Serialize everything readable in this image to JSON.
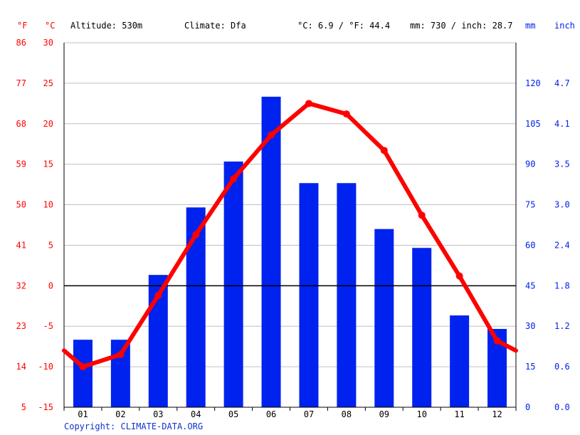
{
  "header": {
    "unit_f": "°F",
    "unit_c": "°C",
    "altitude": "Altitude: 530m",
    "climate": "Climate: Dfa",
    "temp_avg": "°C: 6.9 / °F: 44.4",
    "precip_total": "mm: 730 / inch: 28.7",
    "unit_mm": "mm",
    "unit_inch": "inch"
  },
  "colors": {
    "temperature": "#ff0000",
    "precipitation": "#0022ee",
    "grid": "#c0c0c0"
  },
  "footer": {
    "copyright": "Copyright: CLIMATE-DATA.ORG"
  },
  "chart_data": {
    "type": "bar+line",
    "categories": [
      "01",
      "02",
      "03",
      "04",
      "05",
      "06",
      "07",
      "08",
      "09",
      "10",
      "11",
      "12"
    ],
    "series": [
      {
        "type": "bar",
        "axis": "precipitation",
        "values": [
          25,
          25,
          49,
          74,
          91,
          115,
          83,
          83,
          66,
          59,
          34,
          29
        ]
      },
      {
        "type": "line",
        "axis": "temperature",
        "values": [
          -10.0,
          -8.5,
          -1.2,
          6.3,
          13.2,
          18.6,
          22.5,
          21.2,
          16.7,
          8.7,
          1.2,
          -6.8
        ]
      }
    ],
    "temperature_start": -8.0,
    "temperature_end": -8.0,
    "y_left_celsius": {
      "ticks": [
        -15,
        -10,
        -5,
        0,
        5,
        10,
        15,
        20,
        25,
        30
      ],
      "range": [
        -15,
        30
      ]
    },
    "y_left_fahrenheit": {
      "ticks": [
        5,
        14,
        23,
        32,
        41,
        50,
        59,
        68,
        77,
        86
      ]
    },
    "y_right_mm": {
      "ticks": [
        0,
        15,
        30,
        45,
        60,
        75,
        90,
        105,
        120
      ],
      "range": [
        0,
        135
      ]
    },
    "y_right_inch": {
      "ticks": [
        "0.0",
        "0.6",
        "1.2",
        "1.8",
        "2.4",
        "3.0",
        "3.5",
        "4.1",
        "4.7"
      ]
    },
    "grid": true
  }
}
